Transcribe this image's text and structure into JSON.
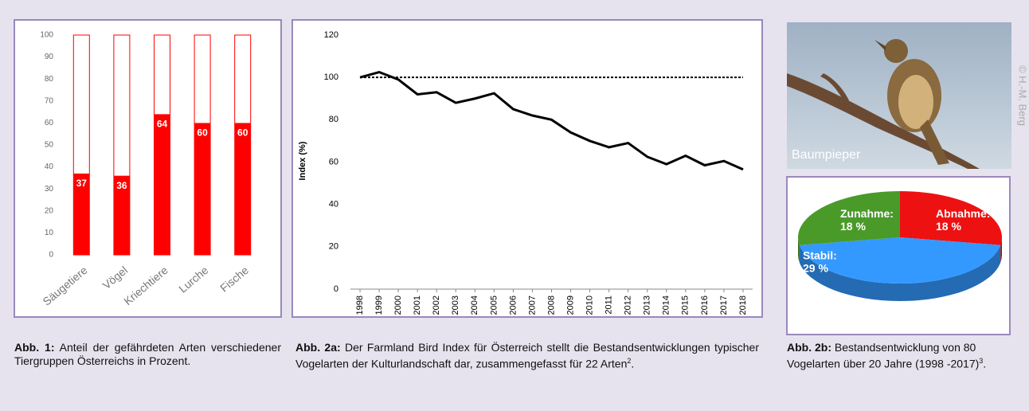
{
  "chart_data": [
    {
      "type": "bar",
      "categories": [
        "Säugetiere",
        "Vögel",
        "Kriechtiere",
        "Lurche",
        "Fische"
      ],
      "values": [
        37,
        36,
        64,
        60,
        60
      ],
      "color": "#ff0000",
      "ylim": [
        0,
        100
      ],
      "yticks": [
        0,
        10,
        20,
        30,
        40,
        50,
        60,
        70,
        80,
        90,
        100
      ],
      "caption": {
        "label": "Abb. 1:",
        "text": "Anteil der gefährdeten Arten verschiedener Tiergruppen Österreichs in Prozent."
      }
    },
    {
      "type": "line",
      "y_label": "Index (%)",
      "x": [
        1998,
        1999,
        2000,
        2001,
        2002,
        2003,
        2004,
        2005,
        2006,
        2007,
        2008,
        2009,
        2010,
        2011,
        2012,
        2013,
        2014,
        2015,
        2016,
        2017,
        2018
      ],
      "values": [
        100,
        102.5,
        99,
        92,
        93,
        88,
        90,
        92.5,
        85,
        82,
        80,
        74,
        70,
        67,
        69,
        62.5,
        59,
        63,
        58.5,
        60.5,
        56.5
      ],
      "color": "#000000",
      "reference_line": 100,
      "xlim": [
        1997.5,
        2018.5
      ],
      "xticks": [
        1998,
        1999,
        2000,
        2001,
        2002,
        2003,
        2004,
        2005,
        2006,
        2007,
        2008,
        2009,
        2010,
        2011,
        2012,
        2013,
        2014,
        2015,
        2016,
        2017,
        2018
      ],
      "ylim": [
        0,
        120
      ],
      "yticks": [
        0,
        20,
        40,
        60,
        80,
        100,
        120
      ],
      "caption": {
        "label": "Abb. 2a:",
        "text": "Der Farmland Bird Index für Österreich stellt die Bestandsentwicklungen typischer Vogelarten der Kulturlandschaft dar, zusammengefasst für 22 Arten",
        "sup": "2",
        "end": "."
      }
    },
    {
      "type": "pie",
      "categories": [
        "Abnahme:",
        "Stabil:",
        "Zunahme:"
      ],
      "values": [
        18,
        29,
        18
      ],
      "value_labels": [
        "18 %",
        "29 %",
        "18 %"
      ],
      "colors": [
        "#ee1111",
        "#3399ff",
        "#4a9a2a"
      ],
      "caption": {
        "label": "Abb. 2b:",
        "text": "Bestandsentwicklung von 80 Vogelarten über 20 Jahre (1998 -2017)",
        "sup": "3",
        "end": "."
      }
    }
  ],
  "photo": {
    "label": "Baumpieper",
    "credit": "© H.-M. Berg"
  }
}
